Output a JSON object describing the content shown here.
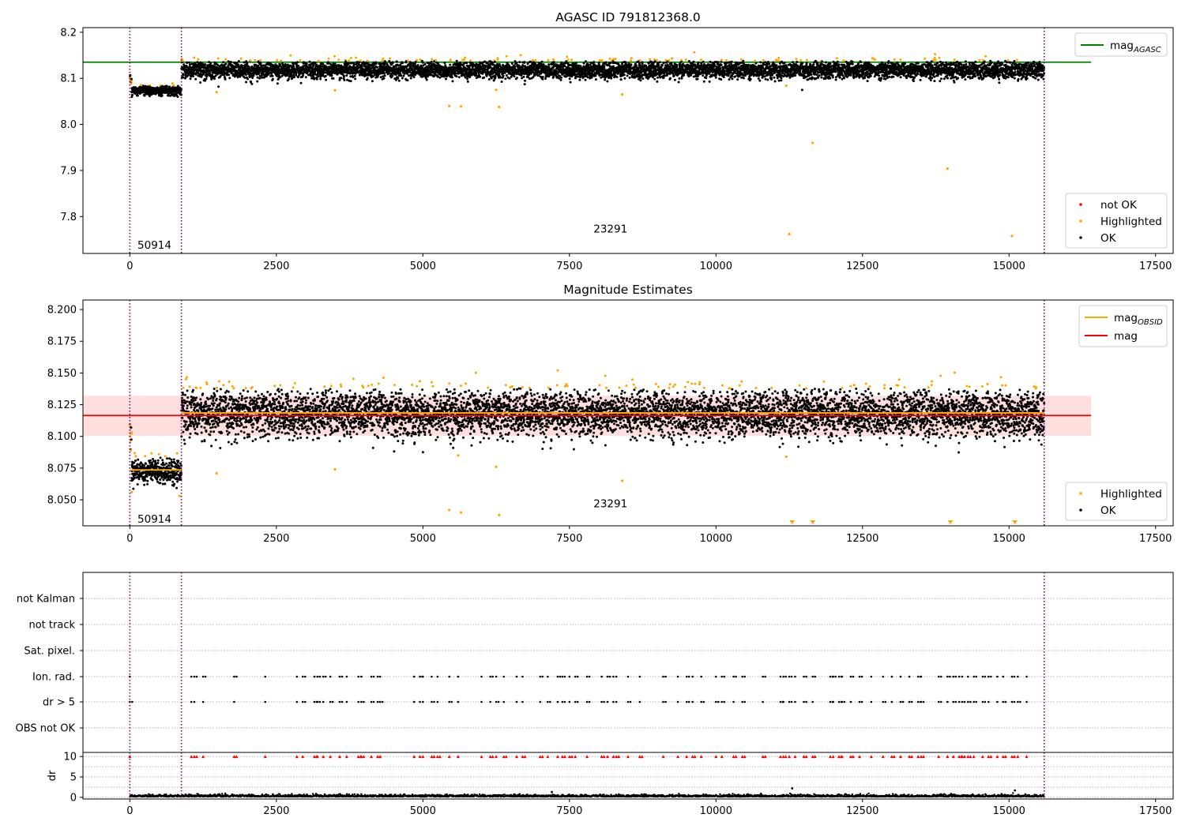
{
  "chart_data": [
    {
      "type": "scatter",
      "title": "AGASC ID 791812368.0",
      "xlim": [
        -800,
        17800
      ],
      "ylim": [
        7.72,
        8.21
      ],
      "xticks": [
        0,
        2500,
        5000,
        7500,
        10000,
        12500,
        15000,
        17500
      ],
      "yticks": [
        7.8,
        7.9,
        8.0,
        8.1,
        8.2
      ],
      "ytick_labels": [
        "7.8",
        "7.9",
        "8.0",
        "8.1",
        "8.2"
      ],
      "legend_lines": [
        {
          "label_main": "mag",
          "label_sub": "AGASC",
          "color": "#008000"
        }
      ],
      "legend_markers": [
        {
          "label": "not OK",
          "color": "#ff0000"
        },
        {
          "label": "Highlighted",
          "color": "#ffa500"
        },
        {
          "label": "OK",
          "color": "#000000"
        }
      ],
      "hline": {
        "value": 8.135,
        "x_end": 16400,
        "color": "#008000"
      },
      "vlines": [
        0,
        880,
        15600
      ],
      "annotations": [
        {
          "text": "50914",
          "x": 420,
          "y": 7.73
        },
        {
          "text": "23291",
          "x": 8200,
          "y": 7.765
        }
      ],
      "segments": [
        {
          "x_start": 0,
          "x_end": 880,
          "mean": 8.073,
          "spread": 0.005
        },
        {
          "x_start": 880,
          "x_end": 15600,
          "mean": 8.118,
          "spread": 0.009
        }
      ],
      "outliers": [
        {
          "x": 5450,
          "y": 8.04
        },
        {
          "x": 5650,
          "y": 8.039
        },
        {
          "x": 6300,
          "y": 8.038
        },
        {
          "x": 8400,
          "y": 8.065
        },
        {
          "x": 11250,
          "y": 7.762
        },
        {
          "x": 11650,
          "y": 7.96
        },
        {
          "x": 13950,
          "y": 7.904
        },
        {
          "x": 15050,
          "y": 7.758
        },
        {
          "x": 1480,
          "y": 8.07
        },
        {
          "x": 3500,
          "y": 8.074
        },
        {
          "x": 6250,
          "y": 8.075
        },
        {
          "x": 11200,
          "y": 8.084
        }
      ]
    },
    {
      "type": "scatter",
      "title": "Magnitude Estimates",
      "xlim": [
        -800,
        17800
      ],
      "ylim": [
        8.0295,
        8.2075
      ],
      "xticks": [
        0,
        2500,
        5000,
        7500,
        10000,
        12500,
        15000,
        17500
      ],
      "yticks": [
        8.05,
        8.075,
        8.1,
        8.125,
        8.15,
        8.175,
        8.2
      ],
      "ytick_labels": [
        "8.050",
        "8.075",
        "8.100",
        "8.125",
        "8.150",
        "8.175",
        "8.200"
      ],
      "legend_lines": [
        {
          "label_main": "mag",
          "label_sub": "OBSID",
          "color": "#ffa500"
        },
        {
          "label_main": "mag",
          "label_sub": "",
          "color": "#ff0000"
        }
      ],
      "legend_markers": [
        {
          "label": "Highlighted",
          "color": "#ffa500"
        },
        {
          "label": "OK",
          "color": "#000000"
        }
      ],
      "band": {
        "y_low": 8.1005,
        "y_high": 8.132,
        "x_end": 16400,
        "color": "#ffdede"
      },
      "hline": {
        "value": 8.1165,
        "x_end": 16400,
        "color": "#ff0000"
      },
      "obsid_lines": [
        {
          "x_start": 0,
          "x_end": 880,
          "value": 8.0735
        },
        {
          "x_start": 880,
          "x_end": 15600,
          "value": 8.1185
        }
      ],
      "vlines": [
        0,
        880,
        15600
      ],
      "annotations": [
        {
          "text": "50914",
          "x": 420,
          "y": 8.032
        },
        {
          "text": "23291",
          "x": 8200,
          "y": 8.044
        }
      ],
      "segments": [
        {
          "x_start": 0,
          "x_end": 880,
          "mean": 8.073,
          "spread": 0.005
        },
        {
          "x_start": 880,
          "x_end": 15600,
          "mean": 8.118,
          "spread": 0.009
        }
      ],
      "offscale_markers": [
        11300,
        11650,
        14000,
        15100
      ],
      "outliers": [
        {
          "x": 5450,
          "y": 8.042
        },
        {
          "x": 5650,
          "y": 8.04
        },
        {
          "x": 6300,
          "y": 8.038
        },
        {
          "x": 8400,
          "y": 8.065
        },
        {
          "x": 1480,
          "y": 8.071
        },
        {
          "x": 3500,
          "y": 8.074
        },
        {
          "x": 6250,
          "y": 8.076
        },
        {
          "x": 11200,
          "y": 8.084
        },
        {
          "x": 5600,
          "y": 8.085
        },
        {
          "x": 850,
          "y": 8.053
        },
        {
          "x": 30,
          "y": 8.056
        }
      ]
    },
    {
      "type": "scatter",
      "title": "",
      "xlim": [
        -800,
        17800
      ],
      "flag_labels": [
        "not Kalman",
        "not track",
        "Sat. pixel.",
        "Ion. rad.",
        "dr > 5",
        "OBS not OK"
      ],
      "flag_x": [
        0,
        1050,
        1100,
        1250,
        1780,
        2310,
        2850,
        2950,
        3150,
        3200,
        3300,
        3420,
        3580,
        3700,
        3900,
        3950,
        4120,
        4230,
        4270,
        4850,
        4950,
        5000,
        5150,
        5250,
        5450,
        5600,
        6000,
        6150,
        6250,
        6380,
        6600,
        6700,
        7000,
        7130,
        7300,
        7380,
        7500,
        7600,
        7800,
        8050,
        8150,
        8250,
        8300,
        8500,
        8700,
        9100,
        9350,
        9500,
        9600,
        9750,
        10000,
        10100,
        10300,
        10450,
        10800,
        11100,
        11150,
        11250,
        11350,
        11500,
        11650,
        11950,
        12000,
        12100,
        12150,
        12300,
        12450,
        12650,
        12850,
        13000,
        13150,
        13300,
        13450,
        13500,
        13800,
        13950,
        14050,
        14150,
        14200,
        14300,
        14400,
        14550,
        14650,
        14800,
        14900,
        15050,
        15150,
        15300
      ],
      "dr_label": "dr",
      "dr_ylim": [
        -0.4,
        11
      ],
      "dr_yticks": [
        0,
        5,
        10
      ],
      "dr_ytick_labels": [
        "0",
        "5",
        "10"
      ],
      "dr_threshold": 10,
      "dr_spikes": [
        {
          "x": 7200,
          "y": 1.3
        },
        {
          "x": 11300,
          "y": 2.2
        },
        {
          "x": 15100,
          "y": 1.7
        }
      ],
      "vlines": [
        0,
        880,
        15600
      ],
      "xticks": [
        0,
        2500,
        5000,
        7500,
        10000,
        12500,
        15000,
        17500
      ]
    }
  ]
}
